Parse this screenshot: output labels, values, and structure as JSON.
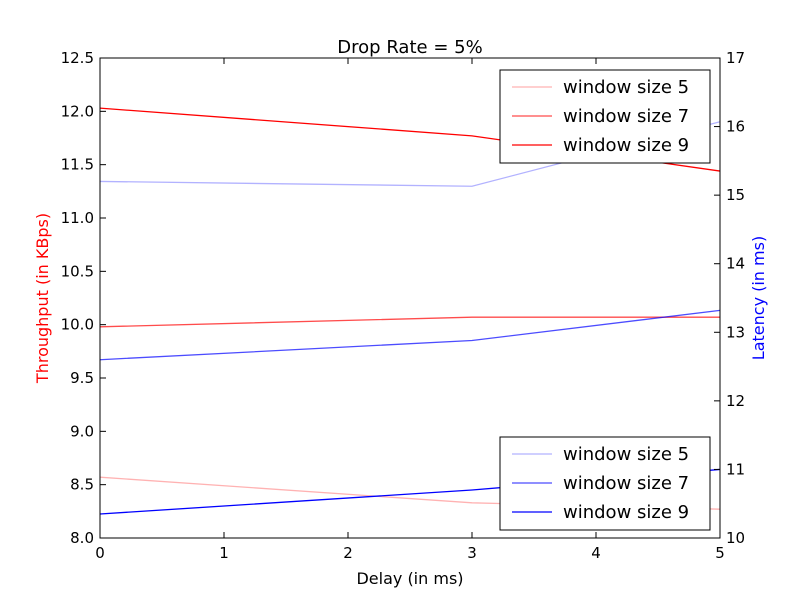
{
  "chart_data": {
    "type": "line",
    "title": "Drop Rate = 5%",
    "xlabel": "Delay (in ms)",
    "ylabel_left": "Throughput (in KBps)",
    "ylabel_right": "Latency (in ms)",
    "xlim": [
      0,
      5
    ],
    "ylim_left": [
      8.0,
      12.5
    ],
    "ylim_right": [
      10,
      17
    ],
    "x_ticks": [
      "0",
      "1",
      "2",
      "3",
      "4",
      "5"
    ],
    "y_left_ticks": [
      "8.0",
      "8.5",
      "9.0",
      "9.5",
      "10.0",
      "10.5",
      "11.0",
      "11.5",
      "12.0",
      "12.5"
    ],
    "y_right_ticks": [
      "10",
      "11",
      "12",
      "13",
      "14",
      "15",
      "16",
      "17"
    ],
    "colors": {
      "throughput_axis": "#ff0000",
      "latency_axis": "#0000ff"
    },
    "throughput_series": [
      {
        "name": "window size 5",
        "color": "#ff0000",
        "opacity": 0.3,
        "x": [
          0,
          3,
          5
        ],
        "y": [
          8.57,
          8.33,
          8.27
        ]
      },
      {
        "name": "window size 7",
        "color": "#ff0000",
        "opacity": 0.7,
        "x": [
          0,
          3,
          5
        ],
        "y": [
          9.98,
          10.07,
          10.07
        ]
      },
      {
        "name": "window size 9",
        "color": "#ff0000",
        "opacity": 1.0,
        "x": [
          0,
          3,
          5
        ],
        "y": [
          12.03,
          11.77,
          11.44
        ]
      }
    ],
    "latency_series": [
      {
        "name": "window size 5",
        "color": "#0000ff",
        "opacity": 0.3,
        "x": [
          0,
          3,
          5
        ],
        "y": [
          15.2,
          15.13,
          16.07
        ]
      },
      {
        "name": "window size 7",
        "color": "#0000ff",
        "opacity": 0.7,
        "x": [
          0,
          3,
          5
        ],
        "y": [
          12.6,
          12.88,
          13.32
        ]
      },
      {
        "name": "window size 9",
        "color": "#0000ff",
        "opacity": 1.0,
        "x": [
          0,
          3,
          5
        ],
        "y": [
          10.35,
          10.7,
          11.0
        ]
      }
    ],
    "legend_throughput_position": "top-right",
    "legend_latency_position": "bottom-right"
  }
}
